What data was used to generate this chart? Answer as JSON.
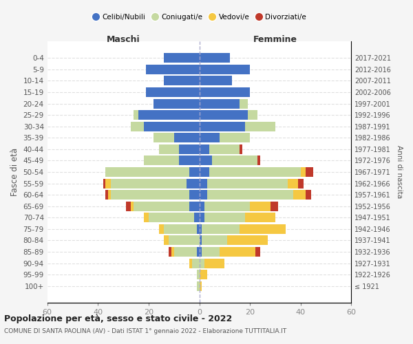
{
  "age_groups": [
    "100+",
    "95-99",
    "90-94",
    "85-89",
    "80-84",
    "75-79",
    "70-74",
    "65-69",
    "60-64",
    "55-59",
    "50-54",
    "45-49",
    "40-44",
    "35-39",
    "30-34",
    "25-29",
    "20-24",
    "15-19",
    "10-14",
    "5-9",
    "0-4"
  ],
  "birth_years": [
    "≤ 1921",
    "1922-1926",
    "1927-1931",
    "1932-1936",
    "1937-1941",
    "1942-1946",
    "1947-1951",
    "1952-1956",
    "1957-1961",
    "1962-1966",
    "1967-1971",
    "1972-1976",
    "1977-1981",
    "1982-1986",
    "1987-1991",
    "1992-1996",
    "1997-2001",
    "2002-2006",
    "2007-2011",
    "2012-2016",
    "2017-2021"
  ],
  "maschi_celibe": [
    0,
    0,
    0,
    1,
    0,
    1,
    2,
    4,
    4,
    5,
    4,
    8,
    8,
    10,
    22,
    24,
    18,
    21,
    14,
    21,
    14
  ],
  "maschi_coniugato": [
    1,
    1,
    3,
    9,
    12,
    13,
    18,
    22,
    31,
    30,
    33,
    14,
    8,
    8,
    5,
    2,
    0,
    0,
    0,
    0,
    0
  ],
  "maschi_vedovo": [
    0,
    0,
    1,
    1,
    2,
    2,
    2,
    1,
    1,
    2,
    0,
    0,
    0,
    0,
    0,
    0,
    0,
    0,
    0,
    0,
    0
  ],
  "maschi_divorziato": [
    0,
    0,
    0,
    1,
    0,
    0,
    0,
    2,
    1,
    1,
    0,
    0,
    0,
    0,
    0,
    0,
    0,
    0,
    0,
    0,
    0
  ],
  "femmine_celibe": [
    0,
    0,
    0,
    1,
    1,
    1,
    2,
    2,
    3,
    3,
    4,
    5,
    4,
    8,
    18,
    19,
    16,
    20,
    13,
    20,
    12
  ],
  "femmine_coniugato": [
    0,
    0,
    2,
    7,
    10,
    15,
    16,
    18,
    34,
    32,
    36,
    18,
    12,
    12,
    12,
    4,
    3,
    0,
    0,
    0,
    0
  ],
  "femmine_vedovo": [
    1,
    3,
    8,
    14,
    16,
    18,
    12,
    8,
    5,
    4,
    2,
    0,
    0,
    0,
    0,
    0,
    0,
    0,
    0,
    0,
    0
  ],
  "femmine_divorziato": [
    0,
    0,
    0,
    2,
    0,
    0,
    0,
    3,
    2,
    2,
    3,
    1,
    1,
    0,
    0,
    0,
    0,
    0,
    0,
    0,
    0
  ],
  "colors": {
    "celibe": "#4472C4",
    "coniugato": "#c5d9a0",
    "vedovo": "#f5c842",
    "divorziato": "#c0392b"
  },
  "title": "Popolazione per età, sesso e stato civile - 2022",
  "subtitle": "COMUNE DI SANTA PAOLINA (AV) - Dati ISTAT 1° gennaio 2022 - Elaborazione TUTTITALIA.IT",
  "xlabel_left": "Maschi",
  "xlabel_right": "Femmine",
  "ylabel": "Fasce di età",
  "ylabel_right": "Anni di nascita",
  "xlim": 60,
  "bg_color": "#f5f5f5",
  "plot_bg_color": "#ffffff"
}
